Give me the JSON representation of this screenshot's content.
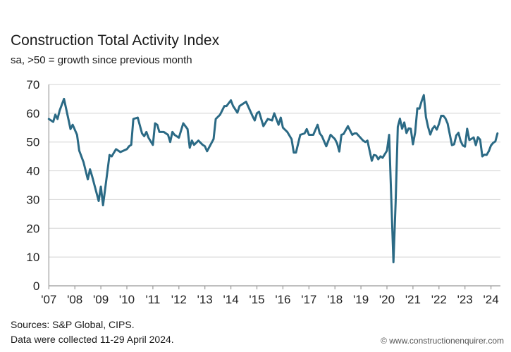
{
  "chart_data": {
    "type": "line",
    "title": "Construction Total Activity Index",
    "subtitle": "sa, >50 = growth since previous month",
    "xlabel": "",
    "ylabel": "",
    "ylim": [
      0,
      70
    ],
    "yticks": [
      0,
      10,
      20,
      30,
      40,
      50,
      60,
      70
    ],
    "xticks": [
      "'07",
      "'08",
      "'09",
      "'10",
      "'11",
      "'12",
      "'13",
      "'14",
      "'15",
      "'16",
      "'17",
      "'18",
      "'19",
      "'20",
      "'21",
      "'22",
      "'23",
      "'24"
    ],
    "xrange": [
      "2007-01",
      "2024-04"
    ],
    "grid": true,
    "legend": "none",
    "line_color": "#2b6a85",
    "series": [
      {
        "points": [
          [
            "2007-01",
            58
          ],
          [
            "2007-03",
            57
          ],
          [
            "2007-04",
            59.5
          ],
          [
            "2007-05",
            58
          ],
          [
            "2007-06",
            61
          ],
          [
            "2007-08",
            65
          ],
          [
            "2007-10",
            58
          ],
          [
            "2007-11",
            54.5
          ],
          [
            "2007-12",
            56
          ],
          [
            "2008-02",
            52.5
          ],
          [
            "2008-03",
            47
          ],
          [
            "2008-05",
            43
          ],
          [
            "2008-07",
            37
          ],
          [
            "2008-08",
            40.5
          ],
          [
            "2008-09",
            38
          ],
          [
            "2008-12",
            29.5
          ],
          [
            "2009-01",
            34.5
          ],
          [
            "2009-02",
            28
          ],
          [
            "2009-05",
            45.5
          ],
          [
            "2009-06",
            45
          ],
          [
            "2009-08",
            47.5
          ],
          [
            "2009-10",
            46.5
          ],
          [
            "2010-01",
            47.5
          ],
          [
            "2010-02",
            48.5
          ],
          [
            "2010-03",
            49
          ],
          [
            "2010-04",
            58
          ],
          [
            "2010-06",
            58.5
          ],
          [
            "2010-08",
            53
          ],
          [
            "2010-09",
            52
          ],
          [
            "2010-10",
            53.5
          ],
          [
            "2010-11",
            51.5
          ],
          [
            "2011-01",
            49
          ],
          [
            "2011-02",
            56.5
          ],
          [
            "2011-03",
            56
          ],
          [
            "2011-04",
            53.5
          ],
          [
            "2011-06",
            53.5
          ],
          [
            "2011-08",
            52.5
          ],
          [
            "2011-09",
            50
          ],
          [
            "2011-10",
            53.5
          ],
          [
            "2011-11",
            52.5
          ],
          [
            "2012-01",
            51.5
          ],
          [
            "2012-03",
            56.5
          ],
          [
            "2012-05",
            54.5
          ],
          [
            "2012-06",
            48
          ],
          [
            "2012-07",
            50.5
          ],
          [
            "2012-08",
            49
          ],
          [
            "2012-10",
            50.5
          ],
          [
            "2012-12",
            49
          ],
          [
            "2013-01",
            48.5
          ],
          [
            "2013-02",
            46.8
          ],
          [
            "2013-05",
            51
          ],
          [
            "2013-06",
            58
          ],
          [
            "2013-08",
            59.5
          ],
          [
            "2013-10",
            62.5
          ],
          [
            "2013-11",
            62.5
          ],
          [
            "2014-01",
            64.5
          ],
          [
            "2014-02",
            62.5
          ],
          [
            "2014-04",
            60.2
          ],
          [
            "2014-05",
            62.5
          ],
          [
            "2014-08",
            64
          ],
          [
            "2014-11",
            59
          ],
          [
            "2014-12",
            57.5
          ],
          [
            "2015-01",
            60
          ],
          [
            "2015-02",
            60.5
          ],
          [
            "2015-04",
            55.5
          ],
          [
            "2015-06",
            58
          ],
          [
            "2015-08",
            57.5
          ],
          [
            "2015-09",
            60
          ],
          [
            "2015-11",
            56
          ],
          [
            "2015-12",
            58.5
          ],
          [
            "2016-01",
            55
          ],
          [
            "2016-03",
            53.5
          ],
          [
            "2016-05",
            51
          ],
          [
            "2016-06",
            46.3
          ],
          [
            "2016-07",
            46.3
          ],
          [
            "2016-09",
            52.5
          ],
          [
            "2016-11",
            53
          ],
          [
            "2016-12",
            54.5
          ],
          [
            "2017-01",
            52.5
          ],
          [
            "2017-03",
            52.5
          ],
          [
            "2017-05",
            56
          ],
          [
            "2017-06",
            53
          ],
          [
            "2017-07",
            52
          ],
          [
            "2017-09",
            48.5
          ],
          [
            "2017-11",
            52.5
          ],
          [
            "2018-01",
            51
          ],
          [
            "2018-02",
            49.5
          ],
          [
            "2018-03",
            46.7
          ],
          [
            "2018-04",
            52.5
          ],
          [
            "2018-05",
            52.8
          ],
          [
            "2018-07",
            55.5
          ],
          [
            "2018-09",
            52.5
          ],
          [
            "2018-10",
            53
          ],
          [
            "2018-11",
            53
          ],
          [
            "2019-02",
            50.5
          ],
          [
            "2019-03",
            50
          ],
          [
            "2019-04",
            50.5
          ],
          [
            "2019-06",
            43.5
          ],
          [
            "2019-07",
            45.5
          ],
          [
            "2019-08",
            45.3
          ],
          [
            "2019-09",
            44
          ],
          [
            "2019-10",
            45
          ],
          [
            "2019-11",
            44.5
          ],
          [
            "2020-01",
            47
          ],
          [
            "2020-02",
            52.5
          ],
          [
            "2020-04",
            8.2
          ],
          [
            "2020-05",
            28.9
          ],
          [
            "2020-06",
            55.3
          ],
          [
            "2020-07",
            58.1
          ],
          [
            "2020-08",
            54.6
          ],
          [
            "2020-09",
            56.8
          ],
          [
            "2020-10",
            53.1
          ],
          [
            "2020-11",
            54.7
          ],
          [
            "2020-12",
            54.6
          ],
          [
            "2021-01",
            49.2
          ],
          [
            "2021-02",
            53.3
          ],
          [
            "2021-03",
            61.7
          ],
          [
            "2021-04",
            61.6
          ],
          [
            "2021-05",
            64.2
          ],
          [
            "2021-06",
            66.3
          ],
          [
            "2021-07",
            58.7
          ],
          [
            "2021-08",
            55.2
          ],
          [
            "2021-09",
            52.6
          ],
          [
            "2021-10",
            54.6
          ],
          [
            "2021-11",
            55.5
          ],
          [
            "2021-12",
            54.3
          ],
          [
            "2022-01",
            56.3
          ],
          [
            "2022-02",
            59.1
          ],
          [
            "2022-03",
            59.1
          ],
          [
            "2022-04",
            58.2
          ],
          [
            "2022-05",
            56.4
          ],
          [
            "2022-06",
            52.6
          ],
          [
            "2022-07",
            48.9
          ],
          [
            "2022-08",
            49.2
          ],
          [
            "2022-09",
            52.3
          ],
          [
            "2022-10",
            53.2
          ],
          [
            "2022-11",
            50.4
          ],
          [
            "2022-12",
            48.8
          ],
          [
            "2023-01",
            48.4
          ],
          [
            "2023-02",
            54.6
          ],
          [
            "2023-03",
            50.7
          ],
          [
            "2023-04",
            51.1
          ],
          [
            "2023-05",
            51.6
          ],
          [
            "2023-06",
            48.9
          ],
          [
            "2023-07",
            51.7
          ],
          [
            "2023-08",
            50.8
          ],
          [
            "2023-09",
            45.0
          ],
          [
            "2023-10",
            45.6
          ],
          [
            "2023-11",
            45.5
          ],
          [
            "2023-12",
            46.8
          ],
          [
            "2024-01",
            48.8
          ],
          [
            "2024-02",
            49.7
          ],
          [
            "2024-03",
            50.2
          ],
          [
            "2024-04",
            53.0
          ]
        ]
      }
    ]
  },
  "footer": {
    "sources": "Sources: S&P Global, CIPS.",
    "collected": "Data were collected 11-29 April 2024.",
    "credit": "© www.constructionenquirer.com"
  }
}
